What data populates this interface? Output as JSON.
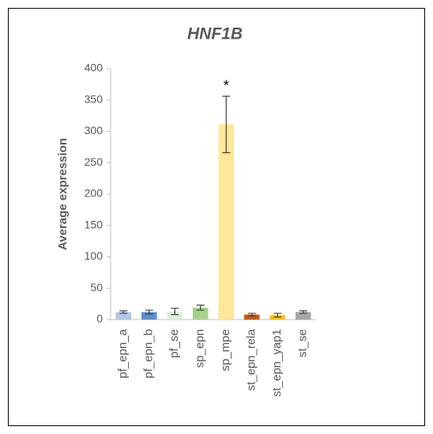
{
  "chart_data": {
    "type": "bar",
    "title": "HNF1B",
    "y_label": "Average expression",
    "categories": [
      "pf_epn_a",
      "pf_epn_b",
      "pf_se",
      "sp_epn",
      "sp_mpe",
      "st_epn_rela",
      "st_epn_yap1",
      "st_se"
    ],
    "values": [
      12,
      12,
      13,
      19,
      311,
      8,
      7,
      12
    ],
    "errors": [
      2,
      3,
      5,
      4,
      45,
      2,
      3,
      2
    ],
    "colors": [
      "#b4c7e7",
      "#5b8fd0",
      "#e2efda",
      "#a9d18e",
      "#ffe699",
      "#c55a11",
      "#ffc000",
      "#a5a5a5"
    ],
    "ylim": [
      0,
      400
    ],
    "yticks": [
      0,
      50,
      100,
      150,
      200,
      250,
      300,
      350,
      400
    ],
    "annotations": [
      {
        "text": "*",
        "category": "sp_mpe"
      }
    ]
  }
}
